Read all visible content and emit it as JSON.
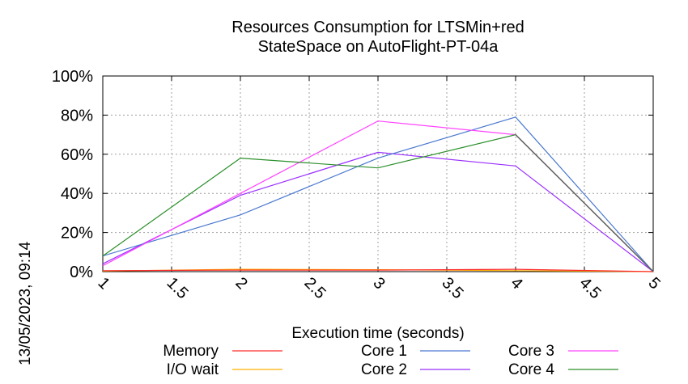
{
  "chart_data": {
    "type": "line",
    "title_lines": [
      "Resources Consumption for LTSMin+red",
      "StateSpace on AutoFlight-PT-04a"
    ],
    "xlabel": "Execution time (seconds)",
    "ylabel": "",
    "x_ticks": [
      "1",
      "1.5",
      "2",
      "2.5",
      "3",
      "3.5",
      "4",
      "4.5",
      "5"
    ],
    "y_ticks": [
      "0%",
      "20%",
      "40%",
      "60%",
      "80%",
      "100%"
    ],
    "xlim": [
      1,
      5
    ],
    "ylim": [
      0,
      100
    ],
    "grid": true,
    "legend_position": "bottom",
    "timestamp": "13/05/2023, 09:14",
    "x": [
      1,
      2,
      3,
      4,
      5
    ],
    "series": [
      {
        "name": "Memory",
        "color": "#ff2a2a",
        "values": [
          0.5,
          0.8,
          0.8,
          1.2,
          0
        ]
      },
      {
        "name": "I/O wait",
        "color": "#ffb000",
        "values": [
          0.3,
          1.2,
          1.0,
          0.5,
          0
        ]
      },
      {
        "name": "Core 1",
        "color": "#4a78d0",
        "values": [
          8,
          29,
          58,
          79,
          0
        ]
      },
      {
        "name": "Core 2",
        "color": "#9b30ff",
        "values": [
          4,
          39,
          61,
          54,
          0
        ]
      },
      {
        "name": "Core 3",
        "color": "#ff44ff",
        "values": [
          3,
          40,
          77,
          70,
          0
        ]
      },
      {
        "name": "Core 4",
        "color": "#2a8f2a",
        "values": [
          8,
          58,
          53,
          70,
          0
        ]
      }
    ]
  }
}
